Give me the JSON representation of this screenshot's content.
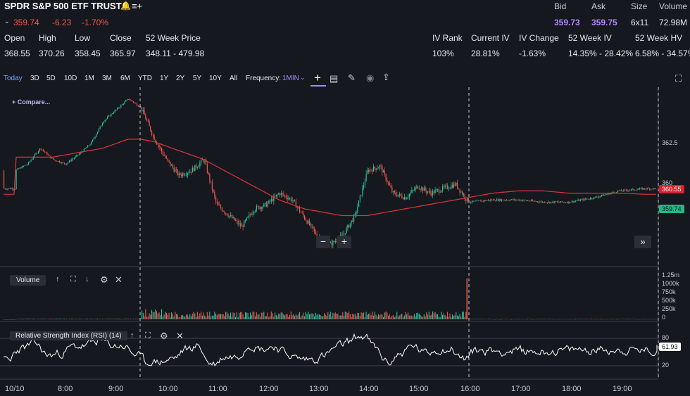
{
  "header": {
    "title": "SPDR S&P 500 ETF TRUST",
    "price": "359.74",
    "change": "-6.23",
    "change_pct": "-1.70%",
    "bid_label": "Bid",
    "bid_value": "359.73",
    "ask_label": "Ask",
    "ask_value": "359.75",
    "size_label": "Size",
    "size_value": "6x11",
    "volume_label": "Volume",
    "volume_value": "72.98M"
  },
  "stats": [
    {
      "label": "Open",
      "value": "368.55"
    },
    {
      "label": "High",
      "value": "370.26"
    },
    {
      "label": "Low",
      "value": "358.45"
    },
    {
      "label": "Close",
      "value": "365.97"
    },
    {
      "label": "52 Week Price",
      "value": "348.11 - 479.98"
    },
    {
      "label": "IV Rank",
      "value": "103%"
    },
    {
      "label": "Current IV",
      "value": "28.81%"
    },
    {
      "label": "IV Change",
      "value": "-1.63%"
    },
    {
      "label": "52 Week IV",
      "value": "14.35% - 28.42%"
    },
    {
      "label": "52 Week HV",
      "value": "6.58% - 34.57%"
    }
  ],
  "toolbar": {
    "timeframes": [
      "Today",
      "3D",
      "5D",
      "10D",
      "1M",
      "3M",
      "6M",
      "YTD",
      "1Y",
      "2Y",
      "5Y",
      "10Y",
      "All"
    ],
    "active_timeframe": "Today",
    "frequency_label": "Frequency:",
    "frequency_value": "1MIN"
  },
  "chart": {
    "compare_label": "+ Compare...",
    "price_ticks": [
      "362.5",
      "360"
    ],
    "ma_tag": "360.55",
    "price_tag": "359.74",
    "volume_pane_label": "Volume",
    "volume_ticks": [
      "1.25m",
      "1000k",
      "750k",
      "500k",
      "250k",
      "0"
    ],
    "rsi_pane_label": "Relative Strength Index (RSI) (14)",
    "rsi_ticks": [
      "80",
      "20"
    ],
    "rsi_tag": "61.93",
    "time_labels": [
      "10/10",
      "8:00",
      "9:00",
      "10:00",
      "11:00",
      "12:00",
      "13:00",
      "14:00",
      "15:00",
      "16:00",
      "17:00",
      "18:00",
      "19:00"
    ],
    "colors": {
      "up": "#26c6a0",
      "down": "#f1584d",
      "ma": "#e0343c",
      "bg": "#15181e"
    }
  },
  "chart_data": {
    "type": "line",
    "title": "",
    "x": [
      "7:00",
      "7:15",
      "7:30",
      "7:45",
      "8:00",
      "8:15",
      "8:30",
      "8:45",
      "9:00",
      "9:15",
      "9:30",
      "9:45",
      "10:00",
      "10:15",
      "10:30",
      "10:45",
      "11:00",
      "11:15",
      "11:30",
      "11:45",
      "12:00",
      "12:15",
      "12:30",
      "12:45",
      "13:00",
      "13:15",
      "13:30",
      "13:45",
      "14:00",
      "14:15",
      "14:30",
      "14:45",
      "15:00",
      "15:15",
      "15:30",
      "15:45",
      "16:00",
      "16:30",
      "17:00",
      "17:30",
      "18:00",
      "18:30",
      "19:00",
      "19:30"
    ],
    "series": [
      {
        "values": [
          361.6,
          361.9,
          362.6,
          362.1,
          361.9,
          362.3,
          362.8,
          363.8,
          364.3,
          364.8,
          364.4,
          363.1,
          362.1,
          361.4,
          361.6,
          362.1,
          360.1,
          359.6,
          359.1,
          359.9,
          360.1,
          360.6,
          360.3,
          359.5,
          358.7,
          358.3,
          358.7,
          359.6,
          361.6,
          361.8,
          360.6,
          360.4,
          360.9,
          360.6,
          360.8,
          361.0,
          360.2,
          360.3,
          360.3,
          360.2,
          360.2,
          360.4,
          360.7,
          360.8
        ]
      },
      {
        "values": [
          362.2,
          362.2,
          362.2,
          362.2,
          362.3,
          362.4,
          362.5,
          362.6,
          362.8,
          363.0,
          363.0,
          362.9,
          362.7,
          362.5,
          362.3,
          362.1,
          361.8,
          361.5,
          361.2,
          360.9,
          360.6,
          360.3,
          360.1,
          359.9,
          359.8,
          359.7,
          359.6,
          359.6,
          359.6,
          359.7,
          359.8,
          359.9,
          360.0,
          360.1,
          360.2,
          360.3,
          360.4,
          360.6,
          360.7,
          360.7,
          360.6,
          360.6,
          360.6,
          360.55
        ]
      }
    ],
    "yticks": [
      360,
      362.5
    ],
    "ylim": [
      357.8,
      365.0
    ],
    "volume_ylim": [
      0,
      1400000
    ],
    "volume_session_levels": [
      {
        "from": "7:00",
        "to": "9:30",
        "value": 15000
      },
      {
        "from": "9:30",
        "to": "16:00",
        "value": 160000
      },
      {
        "from": "16:00",
        "to": "19:45",
        "value": 10000
      }
    ],
    "volume_peak": {
      "x": "16:00",
      "value": 1200000
    },
    "rsi_ylim": [
      0,
      100
    ],
    "rsi_ticks": [
      80,
      20
    ],
    "rsi_last": 61.93
  }
}
